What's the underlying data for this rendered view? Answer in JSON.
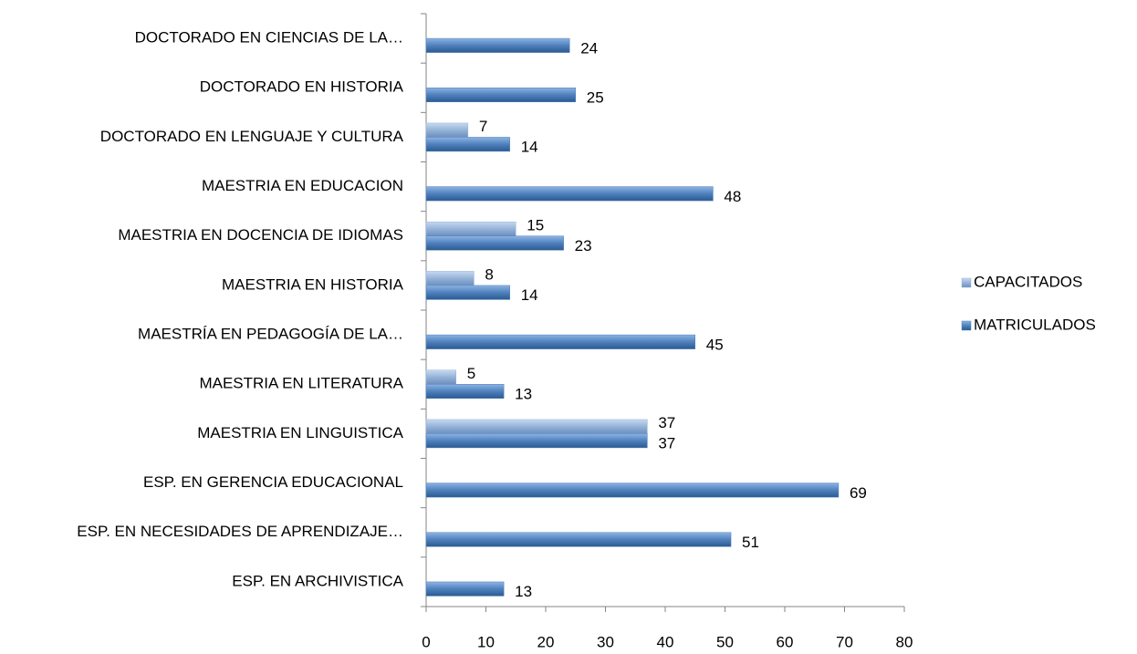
{
  "chart_data": {
    "type": "hbar",
    "categories": [
      "DOCTORADO EN CIENCIAS DE LA…",
      "DOCTORADO EN HISTORIA",
      "DOCTORADO EN LENGUAJE Y CULTURA",
      "MAESTRIA EN EDUCACION",
      "MAESTRIA EN DOCENCIA DE IDIOMAS",
      "MAESTRIA EN HISTORIA",
      "MAESTRÍA EN PEDAGOGÍA DE LA…",
      "MAESTRIA EN LITERATURA",
      "MAESTRIA EN LINGUISTICA",
      "ESP. EN GERENCIA EDUCACIONAL",
      "ESP. EN NECESIDADES  DE APRENDIZAJE…",
      "ESP. EN ARCHIVISTICA"
    ],
    "series": [
      {
        "name": "CAPACITADOS",
        "color": "#95b3d7",
        "values": [
          null,
          null,
          7,
          null,
          15,
          8,
          null,
          5,
          37,
          null,
          null,
          null
        ]
      },
      {
        "name": "MATRICULADOS",
        "color": "#4f81bd",
        "values": [
          24,
          25,
          14,
          48,
          23,
          14,
          45,
          13,
          37,
          69,
          51,
          13
        ]
      }
    ],
    "xlim": [
      0,
      80
    ],
    "xticks": [
      0,
      10,
      20,
      30,
      40,
      50,
      60,
      70,
      80
    ],
    "legend": "right"
  }
}
